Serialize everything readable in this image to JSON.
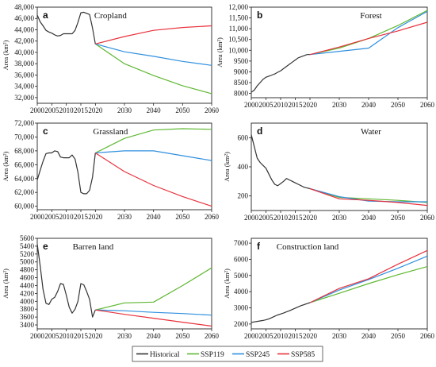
{
  "colors": {
    "Historical": "#333333",
    "SSP119": "#5fb832",
    "SSP245": "#2f8fde",
    "SSP585": "#e8323c"
  },
  "legend": [
    "Historical",
    "SSP119",
    "SSP245",
    "SSP585"
  ],
  "chart_data": [
    {
      "type": "line",
      "letter": "a",
      "title": "Cropland",
      "ylabel": "Area (km²)",
      "xlim": [
        2000,
        2060
      ],
      "ylim": [
        31000,
        48000
      ],
      "x_ticks": [
        2000,
        2005,
        2010,
        2015,
        2020,
        2030,
        2040,
        2050,
        2060
      ],
      "x_tick_labels": [
        "2000",
        "2005",
        "2010",
        "2015",
        "2020",
        "2030",
        "2040",
        "2050",
        "2060"
      ],
      "y_ticks": [
        32000,
        34000,
        36000,
        38000,
        40000,
        42000,
        44000,
        46000,
        48000
      ],
      "y_tick_labels": [
        "32,000",
        "34,000",
        "36,000",
        "38,000",
        "40,000",
        "42,000",
        "44,000",
        "46,000",
        "48,000"
      ],
      "series": [
        {
          "name": "Historical",
          "x": [
            2000,
            2001,
            2002,
            2003,
            2004,
            2005,
            2006,
            2007,
            2008,
            2009,
            2010,
            2011,
            2012,
            2013,
            2014,
            2015,
            2016,
            2017,
            2018,
            2019,
            2020
          ],
          "y": [
            46600,
            45400,
            44700,
            43900,
            43600,
            43400,
            43100,
            42900,
            43000,
            43300,
            43300,
            43300,
            43300,
            43900,
            45300,
            47000,
            47100,
            46900,
            46700,
            44300,
            41500
          ]
        },
        {
          "name": "SSP119",
          "x": [
            2020,
            2030,
            2040,
            2050,
            2060
          ],
          "y": [
            41500,
            38000,
            35900,
            34100,
            32700
          ]
        },
        {
          "name": "SSP245",
          "x": [
            2020,
            2030,
            2040,
            2050,
            2060
          ],
          "y": [
            41500,
            40100,
            39300,
            38400,
            37700
          ]
        },
        {
          "name": "SSP585",
          "x": [
            2020,
            2030,
            2040,
            2050,
            2060
          ],
          "y": [
            41500,
            42800,
            43900,
            44400,
            44700
          ]
        }
      ]
    },
    {
      "type": "line",
      "letter": "b",
      "title": "Forest",
      "ylabel": "Area (km²)",
      "xlim": [
        2000,
        2060
      ],
      "ylim": [
        7800,
        12000
      ],
      "x_ticks": [
        2000,
        2005,
        2010,
        2015,
        2020,
        2030,
        2040,
        2050,
        2060
      ],
      "x_tick_labels": [
        "2000",
        "2005",
        "2010",
        "2015",
        "2020",
        "2030",
        "2040",
        "2050",
        "2060"
      ],
      "y_ticks": [
        8000,
        8500,
        9000,
        9500,
        10000,
        10500,
        11000,
        11500,
        12000
      ],
      "y_tick_labels": [
        "8000",
        "8500",
        "9000",
        "9500",
        "10,000",
        "10,500",
        "11,000",
        "11,500",
        "12,000"
      ],
      "series": [
        {
          "name": "Historical",
          "x": [
            2000,
            2001,
            2002,
            2003,
            2004,
            2005,
            2006,
            2007,
            2008,
            2009,
            2010,
            2011,
            2012,
            2013,
            2014,
            2015,
            2016,
            2017,
            2018,
            2019,
            2020
          ],
          "y": [
            8050,
            8150,
            8350,
            8500,
            8650,
            8750,
            8800,
            8850,
            8900,
            8980,
            9050,
            9150,
            9250,
            9350,
            9450,
            9550,
            9650,
            9700,
            9750,
            9800,
            9800
          ]
        },
        {
          "name": "SSP119",
          "x": [
            2020,
            2030,
            2040,
            2050,
            2060
          ],
          "y": [
            9800,
            10100,
            10550,
            11150,
            11850
          ]
        },
        {
          "name": "SSP245",
          "x": [
            2020,
            2030,
            2040,
            2050,
            2060
          ],
          "y": [
            9800,
            9950,
            10100,
            11050,
            11800
          ]
        },
        {
          "name": "SSP585",
          "x": [
            2020,
            2030,
            2040,
            2050,
            2060
          ],
          "y": [
            9800,
            10150,
            10550,
            10900,
            11300
          ]
        }
      ]
    },
    {
      "type": "line",
      "letter": "c",
      "title": "Grassland",
      "ylabel": "Area (km²)",
      "xlim": [
        2000,
        2060
      ],
      "ylim": [
        59500,
        72000
      ],
      "x_ticks": [
        2000,
        2005,
        2010,
        2015,
        2020,
        2030,
        2040,
        2050,
        2060
      ],
      "x_tick_labels": [
        "2000",
        "2005",
        "2010",
        "2015",
        "2020",
        "2030",
        "2040",
        "2050",
        "2060"
      ],
      "y_ticks": [
        60000,
        62000,
        64000,
        66000,
        68000,
        70000,
        72000
      ],
      "y_tick_labels": [
        "60,000",
        "62,000",
        "64,000",
        "66,000",
        "68,000",
        "70,000",
        "72,000"
      ],
      "series": [
        {
          "name": "Historical",
          "x": [
            2000,
            2001,
            2002,
            2003,
            2004,
            2005,
            2006,
            2007,
            2008,
            2009,
            2010,
            2011,
            2012,
            2013,
            2014,
            2015,
            2016,
            2017,
            2018,
            2019,
            2020
          ],
          "y": [
            63800,
            65200,
            66500,
            67600,
            67700,
            67700,
            68000,
            67900,
            67100,
            67000,
            67000,
            67000,
            67400,
            66800,
            64900,
            62000,
            61800,
            61800,
            62300,
            64200,
            67700
          ]
        },
        {
          "name": "SSP119",
          "x": [
            2020,
            2030,
            2040,
            2050,
            2060
          ],
          "y": [
            67700,
            69800,
            71000,
            71200,
            71100
          ]
        },
        {
          "name": "SSP245",
          "x": [
            2020,
            2030,
            2040,
            2050,
            2060
          ],
          "y": [
            67700,
            68000,
            68000,
            67300,
            66600
          ]
        },
        {
          "name": "SSP585",
          "x": [
            2020,
            2030,
            2040,
            2050,
            2060
          ],
          "y": [
            67700,
            65000,
            63000,
            61400,
            60000
          ]
        }
      ]
    },
    {
      "type": "line",
      "letter": "d",
      "title": "Water",
      "ylabel": "Area (km²)",
      "xlim": [
        2000,
        2060
      ],
      "ylim": [
        100,
        700
      ],
      "x_ticks": [
        2000,
        2005,
        2010,
        2015,
        2020,
        2030,
        2040,
        2050,
        2060
      ],
      "x_tick_labels": [
        "2000",
        "2005",
        "2010",
        "2015",
        "2020",
        "2030",
        "2040",
        "2050",
        "2060"
      ],
      "y_ticks": [
        200,
        400,
        600
      ],
      "y_tick_labels": [
        "200",
        "400",
        "600"
      ],
      "series": [
        {
          "name": "Historical",
          "x": [
            2000,
            2001,
            2002,
            2003,
            2004,
            2005,
            2006,
            2007,
            2008,
            2009,
            2010,
            2011,
            2012,
            2013,
            2014,
            2015,
            2016,
            2017,
            2018,
            2019,
            2020
          ],
          "y": [
            620,
            540,
            460,
            430,
            410,
            390,
            350,
            310,
            280,
            270,
            285,
            300,
            320,
            310,
            300,
            290,
            280,
            270,
            260,
            255,
            250
          ]
        },
        {
          "name": "SSP119",
          "x": [
            2020,
            2030,
            2040,
            2050,
            2060
          ],
          "y": [
            250,
            190,
            180,
            170,
            155
          ]
        },
        {
          "name": "SSP245",
          "x": [
            2020,
            2030,
            2040,
            2050,
            2060
          ],
          "y": [
            250,
            195,
            165,
            160,
            160
          ]
        },
        {
          "name": "SSP585",
          "x": [
            2020,
            2030,
            2040,
            2050,
            2060
          ],
          "y": [
            250,
            180,
            170,
            155,
            135
          ]
        }
      ]
    },
    {
      "type": "line",
      "letter": "e",
      "title": "Barren land",
      "ylabel": "Area (km²)",
      "xlim": [
        2000,
        2060
      ],
      "ylim": [
        3300,
        5600
      ],
      "x_ticks": [
        2000,
        2005,
        2010,
        2015,
        2020,
        2030,
        2040,
        2050,
        2060
      ],
      "x_tick_labels": [
        "2000",
        "2005",
        "2010",
        "2015",
        "2020",
        "2030",
        "2040",
        "2050",
        "2060"
      ],
      "y_ticks": [
        3400,
        3600,
        3800,
        4000,
        4200,
        4400,
        4600,
        4800,
        5000,
        5200,
        5400,
        5600
      ],
      "y_tick_labels": [
        "3400",
        "3600",
        "3800",
        "4000",
        "4200",
        "4400",
        "4600",
        "4800",
        "5000",
        "5200",
        "5400",
        "5600"
      ],
      "series": [
        {
          "name": "Historical",
          "x": [
            2000,
            2001,
            2002,
            2003,
            2004,
            2005,
            2006,
            2007,
            2008,
            2009,
            2010,
            2011,
            2012,
            2013,
            2014,
            2015,
            2016,
            2017,
            2018,
            2019,
            2020
          ],
          "y": [
            5450,
            4900,
            4300,
            3950,
            3920,
            4050,
            4100,
            4250,
            4450,
            4430,
            4150,
            3850,
            3700,
            3800,
            4000,
            4450,
            4420,
            4250,
            4050,
            3600,
            3780
          ]
        },
        {
          "name": "SSP119",
          "x": [
            2020,
            2030,
            2040,
            2050,
            2060
          ],
          "y": [
            3780,
            3960,
            3980,
            4400,
            4850
          ]
        },
        {
          "name": "SSP245",
          "x": [
            2020,
            2030,
            2040,
            2050,
            2060
          ],
          "y": [
            3780,
            3760,
            3720,
            3690,
            3650
          ]
        },
        {
          "name": "SSP585",
          "x": [
            2020,
            2030,
            2040,
            2050,
            2060
          ],
          "y": [
            3780,
            3670,
            3570,
            3470,
            3370
          ]
        }
      ]
    },
    {
      "type": "line",
      "letter": "f",
      "title": "Construction land",
      "ylabel": "Area (km²)",
      "xlim": [
        2000,
        2060
      ],
      "ylim": [
        1700,
        7300
      ],
      "x_ticks": [
        2000,
        2005,
        2010,
        2015,
        2020,
        2030,
        2040,
        2050,
        2060
      ],
      "x_tick_labels": [
        "2000",
        "2005",
        "2010",
        "2015",
        "2020",
        "2030",
        "2040",
        "2050",
        "2060"
      ],
      "y_ticks": [
        2000,
        3000,
        4000,
        5000,
        6000,
        7000
      ],
      "y_tick_labels": [
        "2000",
        "3000",
        "4000",
        "5000",
        "6000",
        "7000"
      ],
      "series": [
        {
          "name": "Historical",
          "x": [
            2000,
            2001,
            2002,
            2003,
            2004,
            2005,
            2006,
            2007,
            2008,
            2009,
            2010,
            2011,
            2012,
            2013,
            2014,
            2015,
            2016,
            2017,
            2018,
            2019,
            2020
          ],
          "y": [
            2100,
            2130,
            2160,
            2190,
            2220,
            2260,
            2320,
            2400,
            2480,
            2560,
            2620,
            2680,
            2750,
            2820,
            2900,
            2980,
            3060,
            3140,
            3200,
            3260,
            3320
          ]
        },
        {
          "name": "SSP119",
          "x": [
            2020,
            2030,
            2040,
            2050,
            2060
          ],
          "y": [
            3320,
            3900,
            4500,
            5050,
            5550
          ]
        },
        {
          "name": "SSP245",
          "x": [
            2020,
            2030,
            2040,
            2050,
            2060
          ],
          "y": [
            3320,
            4100,
            4750,
            5450,
            6200
          ]
        },
        {
          "name": "SSP585",
          "x": [
            2020,
            2030,
            2040,
            2050,
            2060
          ],
          "y": [
            3320,
            4200,
            4800,
            5700,
            6550
          ]
        }
      ]
    }
  ]
}
